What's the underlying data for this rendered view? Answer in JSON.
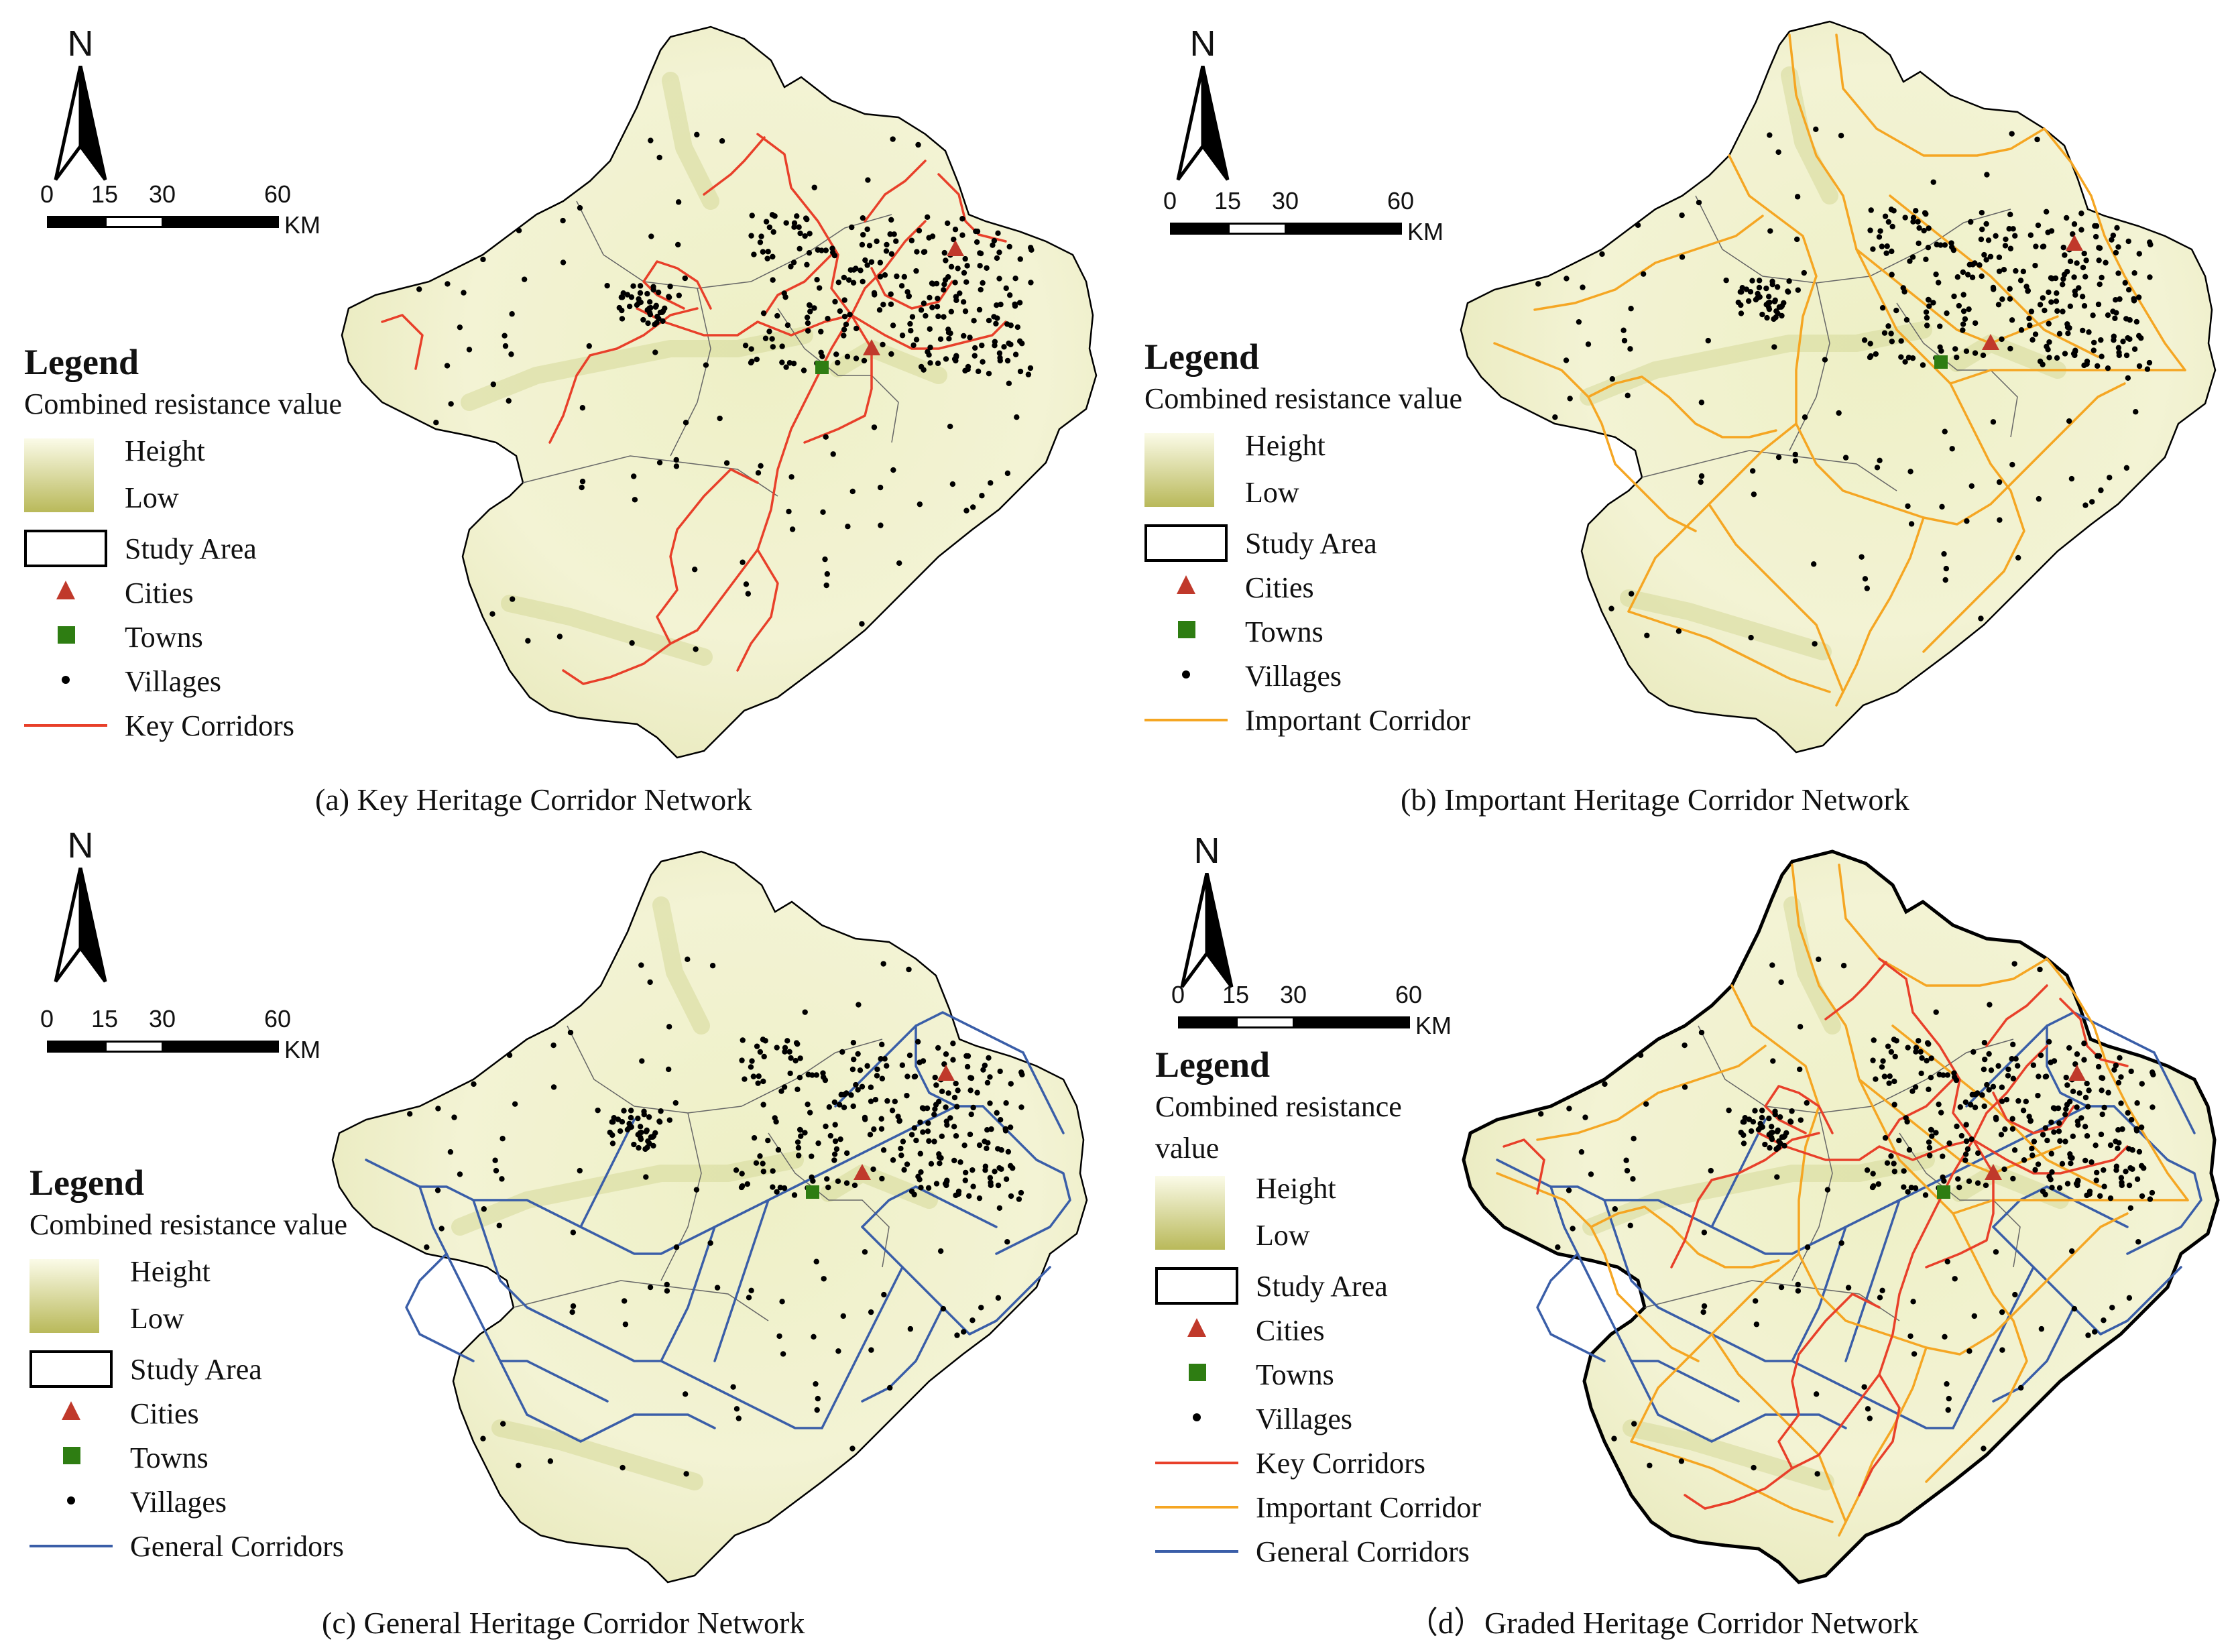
{
  "colors": {
    "key": "#e8402a",
    "important": "#f5a623",
    "general": "#3a5ea8",
    "city": "#c0392b",
    "town": "#2e7d12",
    "village": "#000000",
    "resistance_high": "#fbfbe8",
    "resistance_low": "#b9b95a"
  },
  "north": {
    "label": "N",
    "icon": "north-arrow-icon"
  },
  "scalebar": {
    "ticks": [
      "0",
      "15",
      "30",
      "60"
    ],
    "unit": "KM"
  },
  "legend": {
    "title": "Legend",
    "subtitle": "Combined resistance value",
    "subtitle_line1": "Combined resistance",
    "subtitle_line2": "value",
    "high": "Height",
    "low": "Low",
    "study_area": "Study Area",
    "cities": "Cities",
    "towns": "Towns",
    "villages": "Villages",
    "key": "Key Corridors",
    "important": "Important Corridor",
    "general": "General Corridors"
  },
  "panels": [
    {
      "id": "a",
      "caption": "(a) Key Heritage Corridor Network",
      "corridors": [
        "key"
      ],
      "show_towns_marker": true
    },
    {
      "id": "b",
      "caption": "(b) Important Heritage Corridor Network",
      "corridors": [
        "important"
      ],
      "show_towns_marker": true
    },
    {
      "id": "c",
      "caption": "(c) General Heritage Corridor Network",
      "corridors": [
        "general"
      ],
      "show_towns_marker": true
    },
    {
      "id": "d",
      "caption": "（d）Graded Heritage Corridor Network",
      "corridors": [
        "general",
        "important",
        "key"
      ],
      "show_towns_marker": true
    }
  ]
}
